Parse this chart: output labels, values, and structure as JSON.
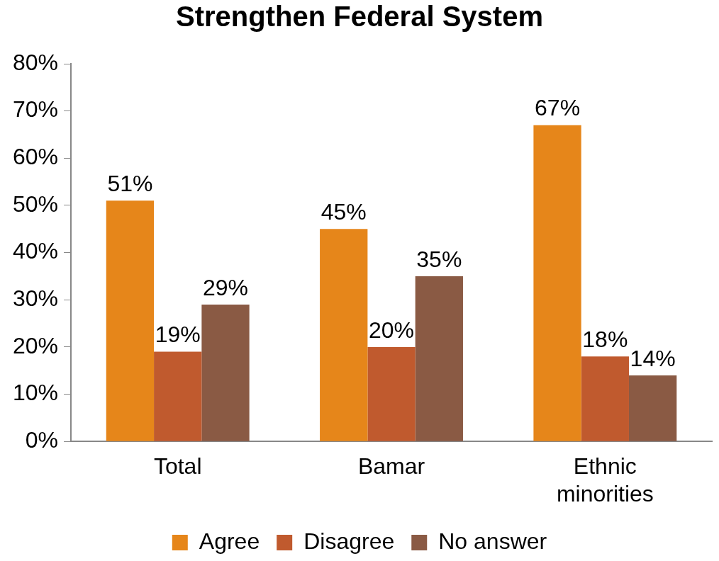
{
  "chart_data": {
    "type": "bar",
    "title": "Strengthen Federal System",
    "categories": [
      "Total",
      "Bamar",
      "Ethnic minorities"
    ],
    "series": [
      {
        "name": "Agree",
        "color": "#e6861a",
        "values": [
          51,
          45,
          67
        ],
        "value_labels": [
          "51%",
          "45%",
          "67%"
        ]
      },
      {
        "name": "Disagree",
        "color": "#c05a2e",
        "values": [
          19,
          20,
          18
        ],
        "value_labels": [
          "19%",
          "20%",
          "18%"
        ]
      },
      {
        "name": "No answer",
        "color": "#8a5a44",
        "values": [
          29,
          35,
          14
        ],
        "value_labels": [
          "29%",
          "35%",
          "14%"
        ]
      }
    ],
    "ylim": [
      0,
      80
    ],
    "yticks": [
      {
        "value": 0,
        "label": "0%"
      },
      {
        "value": 10,
        "label": "10%"
      },
      {
        "value": 20,
        "label": "20%"
      },
      {
        "value": 30,
        "label": "30%"
      },
      {
        "value": 40,
        "label": "40%"
      },
      {
        "value": 50,
        "label": "50%"
      },
      {
        "value": 60,
        "label": "60%"
      },
      {
        "value": 70,
        "label": "70%"
      },
      {
        "value": 80,
        "label": "80%"
      }
    ],
    "grid": false,
    "legend": "bottom"
  }
}
